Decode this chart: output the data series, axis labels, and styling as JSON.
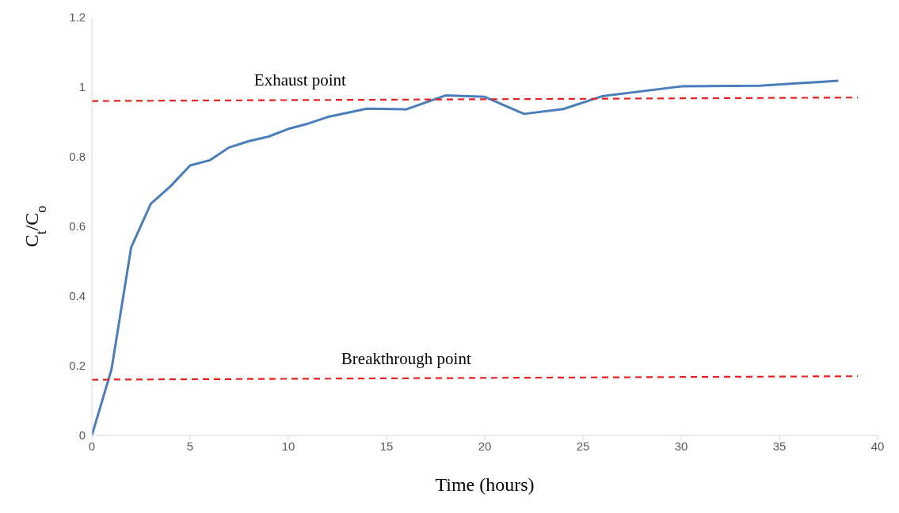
{
  "chart_data": {
    "type": "line",
    "xlabel": "Time (hours)",
    "ylabel": "C$_{t}$/C$_{o}$",
    "xlim": [
      0,
      40
    ],
    "xticks": [
      0,
      5,
      10,
      15,
      20,
      25,
      30,
      35,
      40
    ],
    "ylim": [
      0,
      1.2
    ],
    "yticks": [
      0,
      0.2,
      0.4,
      0.6,
      0.8,
      1,
      1.2
    ],
    "grid": false,
    "legend": false,
    "marker": "none",
    "series": [
      {
        "color": "#4a7ebb",
        "line_style": "solid",
        "x": [
          0,
          1,
          2,
          3,
          4,
          5,
          6,
          7,
          8,
          9,
          10,
          11,
          12,
          14,
          16,
          18,
          20,
          22,
          24,
          26,
          30,
          34,
          38
        ],
        "values": [
          0,
          0.19,
          0.54,
          0.665,
          0.715,
          0.775,
          0.79,
          0.827,
          0.845,
          0.858,
          0.88,
          0.895,
          0.914,
          0.938,
          0.936,
          0.976,
          0.972,
          0.923,
          0.937,
          0.974,
          1.002,
          1.004,
          1.018
        ]
      },
      {
        "color": "#e8201e",
        "line_style": "dashed",
        "x": [
          0,
          39
        ],
        "values": [
          0.96,
          0.97
        ]
      },
      {
        "color": "#e8201e",
        "line_style": "dashed",
        "x": [
          0,
          39
        ],
        "values": [
          0.16,
          0.17
        ]
      }
    ],
    "annotations": [
      "Exhaust point",
      "Breakthrough point"
    ]
  }
}
